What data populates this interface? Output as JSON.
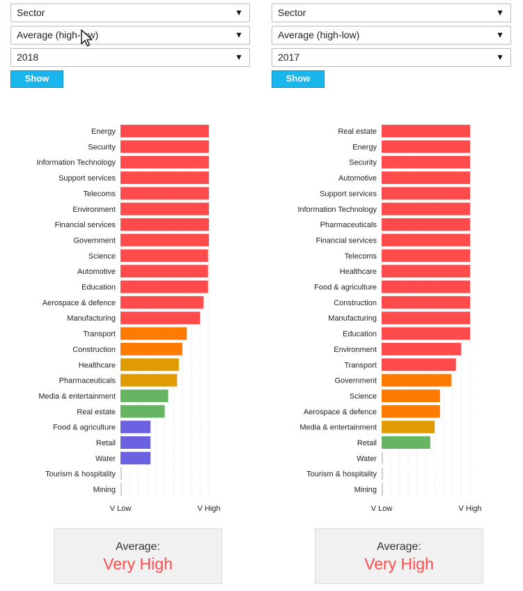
{
  "colors": {
    "very_high": "#ff4b4b",
    "high": "#ff7a00",
    "mid_high": "#e09b00",
    "mid": "#66b562",
    "low": "#6a60e0",
    "none": "#cfcfcf",
    "button": "#18b6ec",
    "average_value": "#ff4b4b"
  },
  "panels": [
    {
      "controls": {
        "grouping": "Sector",
        "measure": "Average (high-low)",
        "year": "2018",
        "show_label": "Show"
      },
      "average": {
        "label": "Average:",
        "value": "Very High"
      },
      "chart_data": {
        "type": "bar",
        "orientation": "horizontal",
        "xlim": [
          0,
          5
        ],
        "xaxis_labels": [
          "V Low",
          "V High"
        ],
        "categories": [
          "Energy",
          "Security",
          "Information Technology",
          "Support services",
          "Telecoms",
          "Environment",
          "Financial services",
          "Government",
          "Science",
          "Automotive",
          "Education",
          "Aerospace & defence",
          "Manufacturing",
          "Transport",
          "Construction",
          "Healthcare",
          "Pharmaceuticals",
          "Media & entertainment",
          "Real estate",
          "Food & agriculture",
          "Retail",
          "Water",
          "Tourism & hospitality",
          "Mining"
        ],
        "values": [
          5.0,
          5.0,
          5.0,
          5.0,
          5.0,
          5.0,
          5.0,
          5.0,
          4.95,
          4.95,
          4.95,
          4.7,
          4.5,
          3.75,
          3.5,
          3.3,
          3.2,
          2.7,
          2.5,
          1.7,
          1.7,
          1.7,
          0.05,
          0.05
        ],
        "levels": [
          "very_high",
          "very_high",
          "very_high",
          "very_high",
          "very_high",
          "very_high",
          "very_high",
          "very_high",
          "very_high",
          "very_high",
          "very_high",
          "very_high",
          "very_high",
          "high",
          "high",
          "mid_high",
          "mid_high",
          "mid",
          "mid",
          "low",
          "low",
          "low",
          "none",
          "none"
        ],
        "grid": true
      }
    },
    {
      "controls": {
        "grouping": "Sector",
        "measure": "Average (high-low)",
        "year": "2017",
        "show_label": "Show"
      },
      "average": {
        "label": "Average:",
        "value": "Very High"
      },
      "chart_data": {
        "type": "bar",
        "orientation": "horizontal",
        "xlim": [
          0,
          5
        ],
        "xaxis_labels": [
          "V Low",
          "V High"
        ],
        "categories": [
          "Real estate",
          "Energy",
          "Security",
          "Automotive",
          "Support services",
          "Information Technology",
          "Pharmaceuticals",
          "Financial services",
          "Telecoms",
          "Healthcare",
          "Food & agriculture",
          "Construction",
          "Manufacturing",
          "Education",
          "Environment",
          "Transport",
          "Government",
          "Science",
          "Aerospace & defence",
          "Media & entertainment",
          "Retail",
          "Water",
          "Tourism & hospitality",
          "Mining"
        ],
        "values": [
          5.0,
          5.0,
          5.0,
          5.0,
          5.0,
          5.0,
          5.0,
          5.0,
          5.0,
          5.0,
          5.0,
          5.0,
          5.0,
          5.0,
          4.5,
          4.2,
          3.95,
          3.3,
          3.3,
          3.0,
          2.75,
          0.05,
          0.05,
          0.05
        ],
        "levels": [
          "very_high",
          "very_high",
          "very_high",
          "very_high",
          "very_high",
          "very_high",
          "very_high",
          "very_high",
          "very_high",
          "very_high",
          "very_high",
          "very_high",
          "very_high",
          "very_high",
          "very_high",
          "very_high",
          "high",
          "high",
          "high",
          "mid_high",
          "mid",
          "none",
          "none",
          "none"
        ],
        "grid": true
      }
    }
  ]
}
